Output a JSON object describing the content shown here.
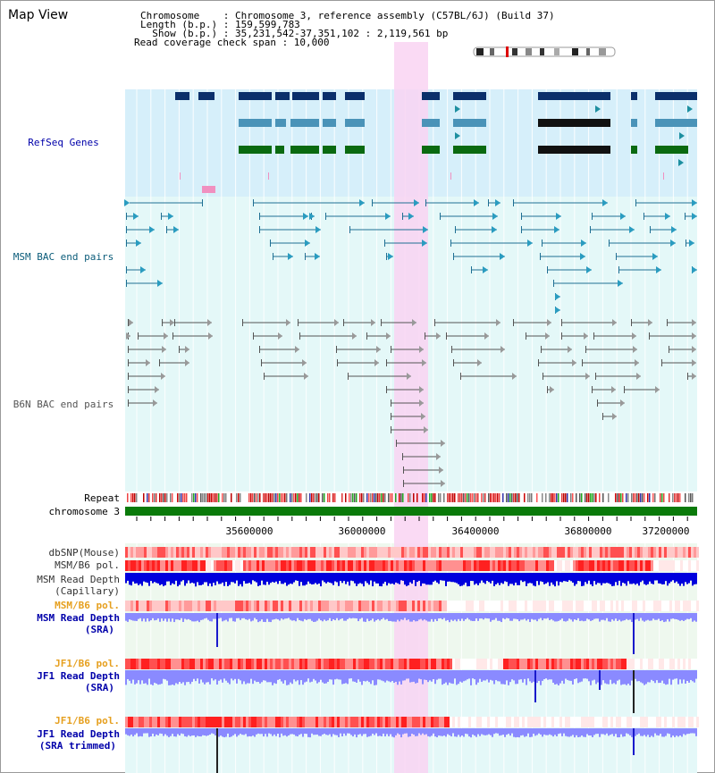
{
  "header": {
    "view_title": "Map View",
    "chromosome_line": "Chromosome    : Chromosome 3, reference assembly (C57BL/6J) (Build 37)",
    "length_line": "Length (b.p.) : 159,599,783",
    "show_line": "  Show (b.p.) : 35,231,542-37,351,102 : 2,119,561 bp",
    "coverage_line": "Read coverage check span : 10,000"
  },
  "tracks": {
    "refseq": "RefSeq Genes",
    "msm_bac": "MSM BAC end pairs",
    "b6n_bac": "B6N BAC end pairs",
    "repeat": "Repeat",
    "chromosome": "chromosome 3",
    "dbsnp": "dbSNP(Mouse)",
    "msm_b6_pol_1": "MSM/B6 pol.",
    "msm_depth_cap_1": "MSM Read Depth",
    "msm_depth_cap_2": "(Capillary)",
    "msm_b6_pol_2": "MSM/B6 pol.",
    "msm_depth_sra_1": "MSM Read Depth",
    "msm_depth_sra_2": "(SRA)",
    "jf1_b6_pol_1": "JF1/B6 pol.",
    "jf1_depth_sra_1": "JF1 Read Depth",
    "jf1_depth_sra_2": "(SRA)",
    "jf1_b6_pol_2": "JF1/B6 pol.",
    "jf1_depth_trim_1": "JF1 Read Depth",
    "jf1_depth_trim_2": "(SRA trimmed)"
  },
  "axis": {
    "ticks": [
      "35600000",
      "36000000",
      "36400000",
      "36800000",
      "37200000"
    ]
  },
  "colors": {
    "refseq_bg": "#d6effa",
    "bac_bg": "#e4f8f8",
    "highlight": "#f9d4f2",
    "chromosome_bar": "#0a7a0a",
    "msm_track": "#1f6f93",
    "b6n_track": "#555555",
    "depth_blue": "#0000dd",
    "depth_light": "#8080ff",
    "orange_label": "#e6a020",
    "blue_label": "#0000aa"
  }
}
